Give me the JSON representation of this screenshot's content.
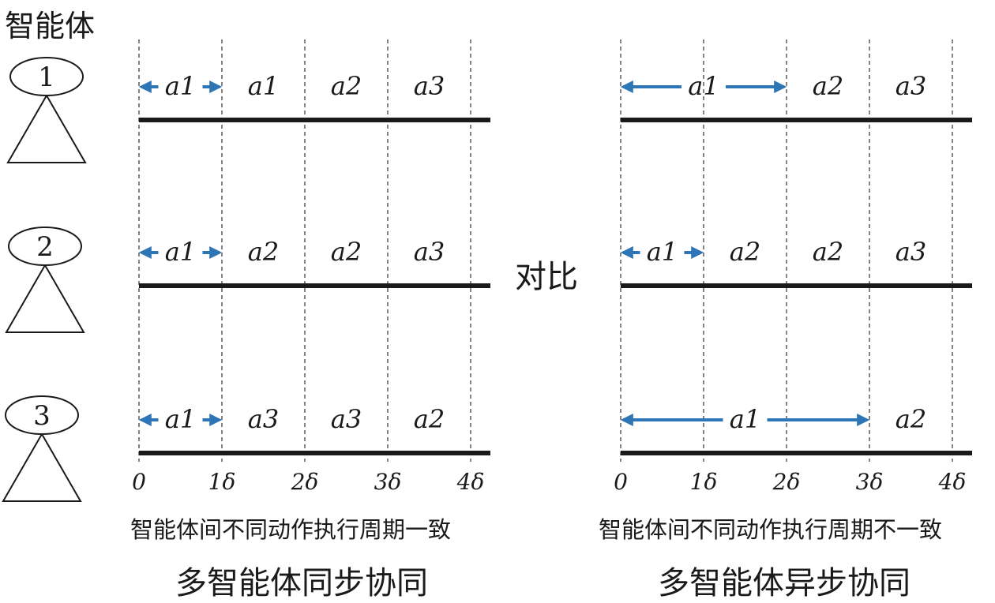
{
  "header": {
    "label": "智能体"
  },
  "agents": [
    {
      "id": "1"
    },
    {
      "id": "2"
    },
    {
      "id": "3"
    }
  ],
  "compare_label": "对比",
  "axis": {
    "ticks": [
      "0",
      "1δ",
      "2δ",
      "3δ",
      "4δ"
    ]
  },
  "panels": [
    {
      "caption": "智能体间不同动作执行周期一致",
      "title": "多智能体同步协同",
      "rows": [
        {
          "actions": [
            {
              "label": "a1",
              "start": 0,
              "end": 1,
              "arrows": true
            },
            {
              "label": "a1",
              "start": 1,
              "end": 2
            },
            {
              "label": "a2",
              "start": 2,
              "end": 3
            },
            {
              "label": "a3",
              "start": 3,
              "end": 4
            }
          ]
        },
        {
          "actions": [
            {
              "label": "a1",
              "start": 0,
              "end": 1,
              "arrows": true
            },
            {
              "label": "a2",
              "start": 1,
              "end": 2
            },
            {
              "label": "a2",
              "start": 2,
              "end": 3
            },
            {
              "label": "a3",
              "start": 3,
              "end": 4
            }
          ]
        },
        {
          "actions": [
            {
              "label": "a1",
              "start": 0,
              "end": 1,
              "arrows": true
            },
            {
              "label": "a3",
              "start": 1,
              "end": 2
            },
            {
              "label": "a3",
              "start": 2,
              "end": 3
            },
            {
              "label": "a2",
              "start": 3,
              "end": 4
            }
          ]
        }
      ]
    },
    {
      "caption": "智能体间不同动作执行周期不一致",
      "title": "多智能体异步协同",
      "rows": [
        {
          "actions": [
            {
              "label": "a1",
              "start": 0,
              "end": 2,
              "arrows": true
            },
            {
              "label": "a2",
              "start": 2,
              "end": 3
            },
            {
              "label": "a3",
              "start": 3,
              "end": 4
            }
          ]
        },
        {
          "actions": [
            {
              "label": "a1",
              "start": 0,
              "end": 1,
              "arrows": true
            },
            {
              "label": "a2",
              "start": 1,
              "end": 2
            },
            {
              "label": "a2",
              "start": 2,
              "end": 3
            },
            {
              "label": "a3",
              "start": 3,
              "end": 4
            }
          ]
        },
        {
          "actions": [
            {
              "label": "a1",
              "start": 0,
              "end": 3,
              "arrows": true
            },
            {
              "label": "a2",
              "start": 3,
              "end": 4
            }
          ]
        }
      ]
    }
  ],
  "colors": {
    "arrow": "#2e75b6",
    "line": "#1a1a1a",
    "grid": "#333333"
  }
}
